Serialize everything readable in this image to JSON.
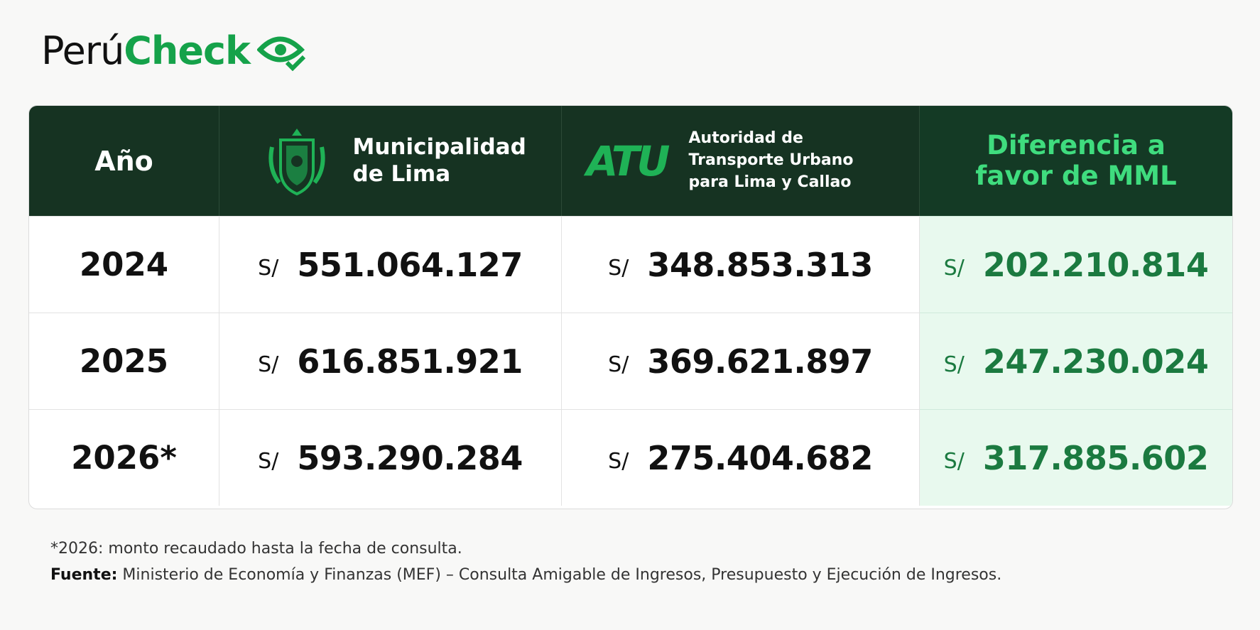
{
  "header": {
    "brand_left": "Perú",
    "brand_right": "Check"
  },
  "table": {
    "columns": {
      "year": "Año",
      "mml": "Municipalidad de Lima",
      "atu_logo": "ATU",
      "atu": "Autoridad de Transporte Urbano para Lima y Callao",
      "diff": "Diferencia a favor de MML"
    },
    "rows": [
      {
        "year": "2024",
        "mml": {
          "currency": "S/",
          "amount": "551.064.127"
        },
        "atu": {
          "currency": "S/",
          "amount": "348.853.313"
        },
        "diff": {
          "currency": "S/",
          "amount": "202.210.814"
        }
      },
      {
        "year": "2025",
        "mml": {
          "currency": "S/",
          "amount": "616.851.921"
        },
        "atu": {
          "currency": "S/",
          "amount": "369.621.897"
        },
        "diff": {
          "currency": "S/",
          "amount": "247.230.024"
        }
      },
      {
        "year": "2026*",
        "mml": {
          "currency": "S/",
          "amount": "593.290.284"
        },
        "atu": {
          "currency": "S/",
          "amount": "275.404.682"
        },
        "diff": {
          "currency": "S/",
          "amount": "317.885.602"
        }
      }
    ]
  },
  "footer": {
    "note": "*2026: monto recaudado hasta la fecha de consulta.",
    "source_label": "Fuente:",
    "source_text": "Ministerio de Economía y Finanzas (MEF) – Consulta Amigable de Ingresos, Presupuesto y Ejecución de Ingresos."
  }
}
